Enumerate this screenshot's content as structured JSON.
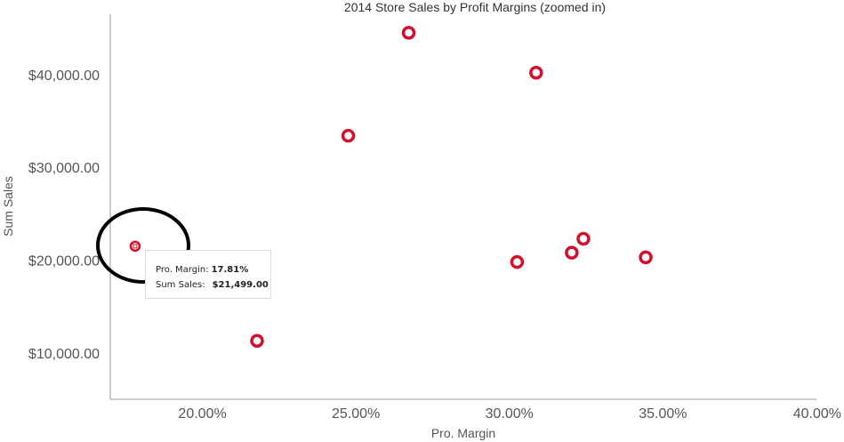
{
  "chart_data": {
    "type": "scatter",
    "title": "2014 Store Sales by Profit Margins (zoomed in)",
    "xlabel": "Pro. Margin",
    "ylabel": "Sum Sales",
    "xlim": [
      0.17,
      0.4
    ],
    "ylim": [
      5000,
      46500
    ],
    "xticks": [
      {
        "value": 0.2,
        "label": "20.00%"
      },
      {
        "value": 0.25,
        "label": "25.00%"
      },
      {
        "value": 0.3,
        "label": "30.00%"
      },
      {
        "value": 0.35,
        "label": "35.00%"
      },
      {
        "value": 0.4,
        "label": "40.00%"
      }
    ],
    "yticks": [
      {
        "value": 10000,
        "label": "$10,000.00"
      },
      {
        "value": 20000,
        "label": "$20,000.00"
      },
      {
        "value": 30000,
        "label": "$30,000.00"
      },
      {
        "value": 40000,
        "label": "$40,000.00"
      }
    ],
    "grid": false,
    "marker_color": "#d0102e",
    "series": [
      {
        "points": [
          {
            "x": 0.1781,
            "y": 21499
          },
          {
            "x": 0.2178,
            "y": 11300
          },
          {
            "x": 0.2475,
            "y": 33400
          },
          {
            "x": 0.2672,
            "y": 44500
          },
          {
            "x": 0.3025,
            "y": 19800
          },
          {
            "x": 0.3087,
            "y": 40200
          },
          {
            "x": 0.3203,
            "y": 20800
          },
          {
            "x": 0.3241,
            "y": 22300
          },
          {
            "x": 0.3444,
            "y": 20300
          }
        ]
      }
    ],
    "annotation": {
      "type": "hand-drawn-circle",
      "target_point_index": 0
    },
    "tooltip": {
      "rows": [
        {
          "label": "Pro. Margin:",
          "value": "17.81%"
        },
        {
          "label": "Sum Sales:",
          "value": "$21,499.00"
        }
      ]
    }
  }
}
